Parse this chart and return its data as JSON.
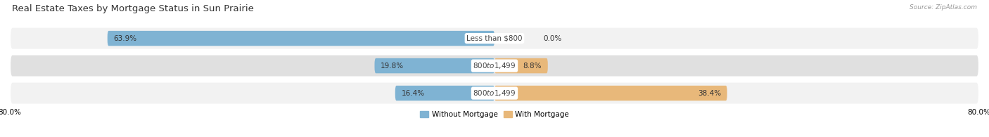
{
  "title": "Real Estate Taxes by Mortgage Status in Sun Prairie",
  "source": "Source: ZipAtlas.com",
  "rows": [
    {
      "label": "Less than $800",
      "without": 63.9,
      "with": 0.0
    },
    {
      "label": "$800 to $1,499",
      "without": 19.8,
      "with": 8.8
    },
    {
      "label": "$800 to $1,499",
      "without": 16.4,
      "with": 38.4
    }
  ],
  "color_without": "#7fb3d3",
  "color_with": "#e8b87a",
  "row_bg_light": "#f2f2f2",
  "row_bg_dark": "#e0e0e0",
  "xlim": 80.0,
  "legend_without": "Without Mortgage",
  "legend_with": "With Mortgage",
  "title_fontsize": 9.5,
  "label_fontsize": 7.5,
  "tick_fontsize": 7.5,
  "source_fontsize": 6.5,
  "bar_height": 0.55,
  "figsize": [
    14.06,
    1.95
  ],
  "dpi": 100
}
